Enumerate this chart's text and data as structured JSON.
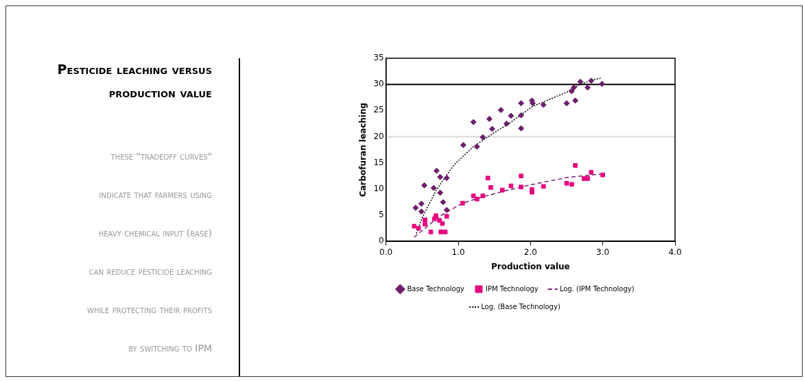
{
  "chart_data": {
    "type": "scatter",
    "title": "Pesticide leaching versus production value",
    "annotations": [
      "these \"tradeoff curves\"",
      "indicate that farmers using",
      "heavy chemical input (base)",
      "can reduce pesticide leaching",
      "while protecting their profits",
      "by switching to IPM"
    ],
    "xlabel": "Production value",
    "ylabel": "Carbofuran leaching",
    "xlim": [
      0,
      4
    ],
    "xticks": [
      {
        "value": 0,
        "label": "0.0"
      },
      {
        "value": 1,
        "label": "1.0"
      },
      {
        "value": 2,
        "label": "2.0"
      },
      {
        "value": 3,
        "label": "3.0"
      },
      {
        "value": 4,
        "label": "4.0"
      }
    ],
    "ylim": [
      0,
      35
    ],
    "yticks": [
      0,
      5,
      10,
      15,
      20,
      25,
      30,
      35
    ],
    "grid": false,
    "legend": "bottom",
    "ref_lines": [
      {
        "axis": "y",
        "value": 30,
        "color": "#000000"
      },
      {
        "axis": "y",
        "value": 20,
        "color": "#d9d9d9"
      }
    ],
    "series": [
      {
        "name": "Base Technology",
        "type": "scatter",
        "marker": "diamond",
        "color": "#6b1f6b",
        "x": [
          0.41,
          0.49,
          0.49,
          0.53,
          0.66,
          0.7,
          0.75,
          0.75,
          0.84,
          0.79,
          0.84,
          1.07,
          1.21,
          1.26,
          1.34,
          1.43,
          1.47,
          1.59,
          1.67,
          1.73,
          1.87,
          1.87,
          1.87,
          2.02,
          2.03,
          2.18,
          2.5,
          2.62,
          2.57,
          2.6,
          2.69,
          2.79,
          2.84,
          2.99
        ],
        "values": [
          6.4,
          7.2,
          5.7,
          10.7,
          10.2,
          13.5,
          12.3,
          9.3,
          12.1,
          7.5,
          6,
          18.4,
          22.8,
          18.1,
          19.9,
          23.4,
          21.5,
          25.1,
          22.5,
          24,
          26.4,
          24.1,
          21.6,
          26.9,
          26.4,
          26.1,
          26.4,
          26.9,
          28.7,
          29.4,
          30.5,
          29.4,
          30.7,
          30.1
        ]
      },
      {
        "name": "IPM Technology",
        "type": "scatter",
        "marker": "square",
        "color": "#e6007e",
        "x": [
          0.39,
          0.45,
          0.54,
          0.54,
          0.62,
          0.67,
          0.69,
          0.74,
          0.78,
          0.82,
          0.84,
          0.76,
          1.06,
          1.21,
          1.26,
          1.34,
          1.41,
          1.45,
          1.61,
          1.73,
          1.87,
          1.87,
          2.02,
          2.02,
          2.18,
          2.5,
          2.57,
          2.62,
          2.74,
          2.79,
          2.84,
          3.0
        ],
        "values": [
          2.9,
          2.5,
          4.1,
          3.3,
          1.8,
          4.3,
          4.9,
          4,
          3.4,
          1.8,
          4.8,
          1.8,
          7.3,
          8.7,
          8.1,
          8.7,
          12.1,
          10.3,
          9.8,
          10.6,
          12.5,
          10.4,
          9.9,
          9.4,
          10.5,
          11.1,
          10.9,
          14.5,
          12,
          12,
          13.2,
          12.7
        ]
      },
      {
        "name": "Log. (IPM Technology)",
        "type": "line",
        "marker": "none",
        "line_style": "dashed",
        "color": "#7b1e74",
        "x": [
          0.39,
          0.74,
          1.06,
          1.34,
          1.66,
          2.0,
          2.5,
          3.0
        ],
        "values": [
          0.8,
          4.8,
          7.3,
          8.5,
          9.7,
          10.8,
          12.2,
          12.9
        ]
      },
      {
        "name": "Log. (Base Technology)",
        "type": "line",
        "marker": "none",
        "line_style": "dotted",
        "color": "#000000",
        "x": [
          0.42,
          0.5,
          0.7,
          0.94,
          1.21,
          1.5,
          1.7,
          2.03,
          2.5,
          2.67,
          2.84,
          2.97
        ],
        "values": [
          1.5,
          4.5,
          9.9,
          14.6,
          18.1,
          20.8,
          22.5,
          25.8,
          28.5,
          29.9,
          30.8,
          31.2
        ]
      }
    ]
  }
}
